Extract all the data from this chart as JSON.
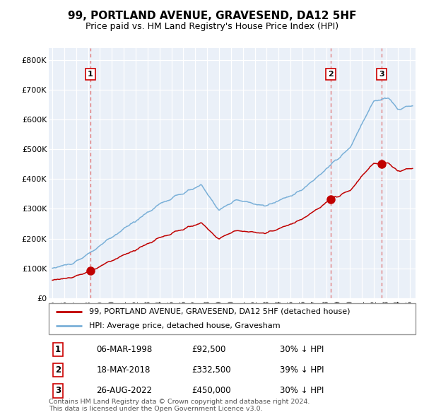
{
  "title": "99, PORTLAND AVENUE, GRAVESEND, DA12 5HF",
  "subtitle": "Price paid vs. HM Land Registry's House Price Index (HPI)",
  "xlim": [
    1994.7,
    2025.5
  ],
  "ylim": [
    0,
    840000
  ],
  "yticks": [
    0,
    100000,
    200000,
    300000,
    400000,
    500000,
    600000,
    700000,
    800000
  ],
  "ytick_labels": [
    "£0",
    "£100K",
    "£200K",
    "£300K",
    "£400K",
    "£500K",
    "£600K",
    "£700K",
    "£800K"
  ],
  "sale_dates": [
    1998.18,
    2018.38,
    2022.65
  ],
  "sale_prices": [
    92500,
    332500,
    450000
  ],
  "sale_labels": [
    "1",
    "2",
    "3"
  ],
  "hpi_color": "#7ab0d8",
  "sale_color": "#c00000",
  "dashed_line_color": "#e07070",
  "background_color": "#eaf0f8",
  "grid_color": "#ffffff",
  "legend_entries": [
    "99, PORTLAND AVENUE, GRAVESEND, DA12 5HF (detached house)",
    "HPI: Average price, detached house, Gravesham"
  ],
  "table_rows": [
    [
      "1",
      "06-MAR-1998",
      "£92,500",
      "30% ↓ HPI"
    ],
    [
      "2",
      "18-MAY-2018",
      "£332,500",
      "39% ↓ HPI"
    ],
    [
      "3",
      "26-AUG-2022",
      "£450,000",
      "30% ↓ HPI"
    ]
  ],
  "footer": "Contains HM Land Registry data © Crown copyright and database right 2024.\nThis data is licensed under the Open Government Licence v3.0.",
  "title_fontsize": 11,
  "subtitle_fontsize": 9
}
